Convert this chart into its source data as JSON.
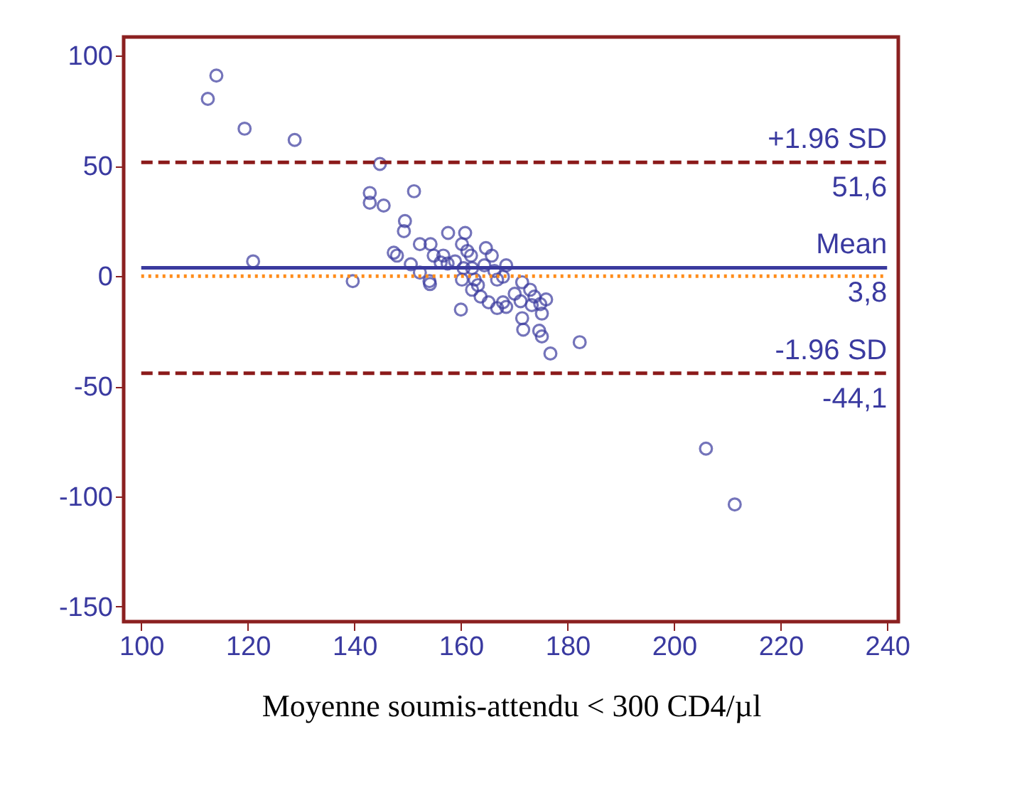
{
  "chart_data": {
    "type": "scatter",
    "xlabel": "Moyenne soumis-attendu < 300 CD4/µl",
    "xlim": [
      96.7,
      242.1
    ],
    "ylim": [
      -156.8,
      108.5
    ],
    "xticks": [
      100,
      120,
      140,
      160,
      180,
      200,
      220,
      240
    ],
    "yticks": [
      -150,
      -100,
      -50,
      0,
      50,
      100
    ],
    "grid": false,
    "marker": "circle",
    "series": [
      {
        "color": "#3a3a9e",
        "x": [
          112.5,
          114.1,
          119.4,
          128.8,
          121,
          144.8,
          142.9,
          142.9,
          145.5,
          151.2,
          139.7,
          149.5,
          149.3,
          147.4,
          148,
          150.6,
          152.3,
          154.3,
          154.9,
          154.1,
          154.2,
          152.3,
          157.6,
          156.7,
          156.2,
          157.5,
          158.9,
          160,
          160.8,
          160.2,
          161.2,
          161.9,
          160.5,
          160.2,
          162.1,
          162.6,
          163.2,
          162.1,
          163.7,
          164.7,
          165.8,
          164.4,
          166.3,
          166.8,
          165.2,
          166.8,
          167.9,
          168.5,
          168.5,
          167.9,
          170.1,
          171.5,
          171.2,
          171.5,
          171.7,
          173,
          173.3,
          173.8,
          174.9,
          175.2,
          174.7,
          175.2,
          176,
          176.8,
          182.3,
          206,
          211.4
        ],
        "values": [
          80.4,
          91,
          66.9,
          61.8,
          6.7,
          50.9,
          37.7,
          33.3,
          32,
          38.5,
          -2.3,
          25,
          20.4,
          10.6,
          9.3,
          5.4,
          14.5,
          14.5,
          9.3,
          -2.3,
          -3.6,
          1.6,
          19.6,
          9.3,
          6.2,
          5.7,
          6.7,
          -15.2,
          19.6,
          14.5,
          11.4,
          9.3,
          3.6,
          -1.6,
          3.6,
          -1.6,
          -4.1,
          -6.2,
          -9.3,
          12.7,
          9.3,
          4.9,
          2.3,
          -1.6,
          -11.9,
          -14.5,
          -11.9,
          -14,
          4.9,
          -0.3,
          -8,
          -2.8,
          -11.4,
          -19.1,
          -24.3,
          -6.2,
          -13.2,
          -9.3,
          -12.7,
          -17,
          -24.8,
          -27.4,
          -10.6,
          -35.1,
          -30,
          -78.3,
          -103.6
        ]
      }
    ],
    "ref_lines": [
      {
        "axis": "y",
        "value": 51.6,
        "label": "+1.96 SD",
        "color": "#8b1a1a",
        "line_style": "dashed"
      },
      {
        "axis": "y",
        "value": 3.8,
        "label": "Mean",
        "color": "#3a3a9e",
        "line_style": "solid"
      },
      {
        "axis": "y",
        "value": -44.1,
        "label": "-1.96 SD",
        "color": "#8b1a1a",
        "line_style": "dashed"
      },
      {
        "axis": "y",
        "value": 0,
        "color": "#ff8c1a",
        "line_style": "dotted"
      }
    ],
    "annotations": [
      {
        "text": "51,6",
        "y": 51.6
      },
      {
        "text": "3,8",
        "y": 3.8
      },
      {
        "text": "-44,1",
        "y": -44.1
      }
    ]
  }
}
